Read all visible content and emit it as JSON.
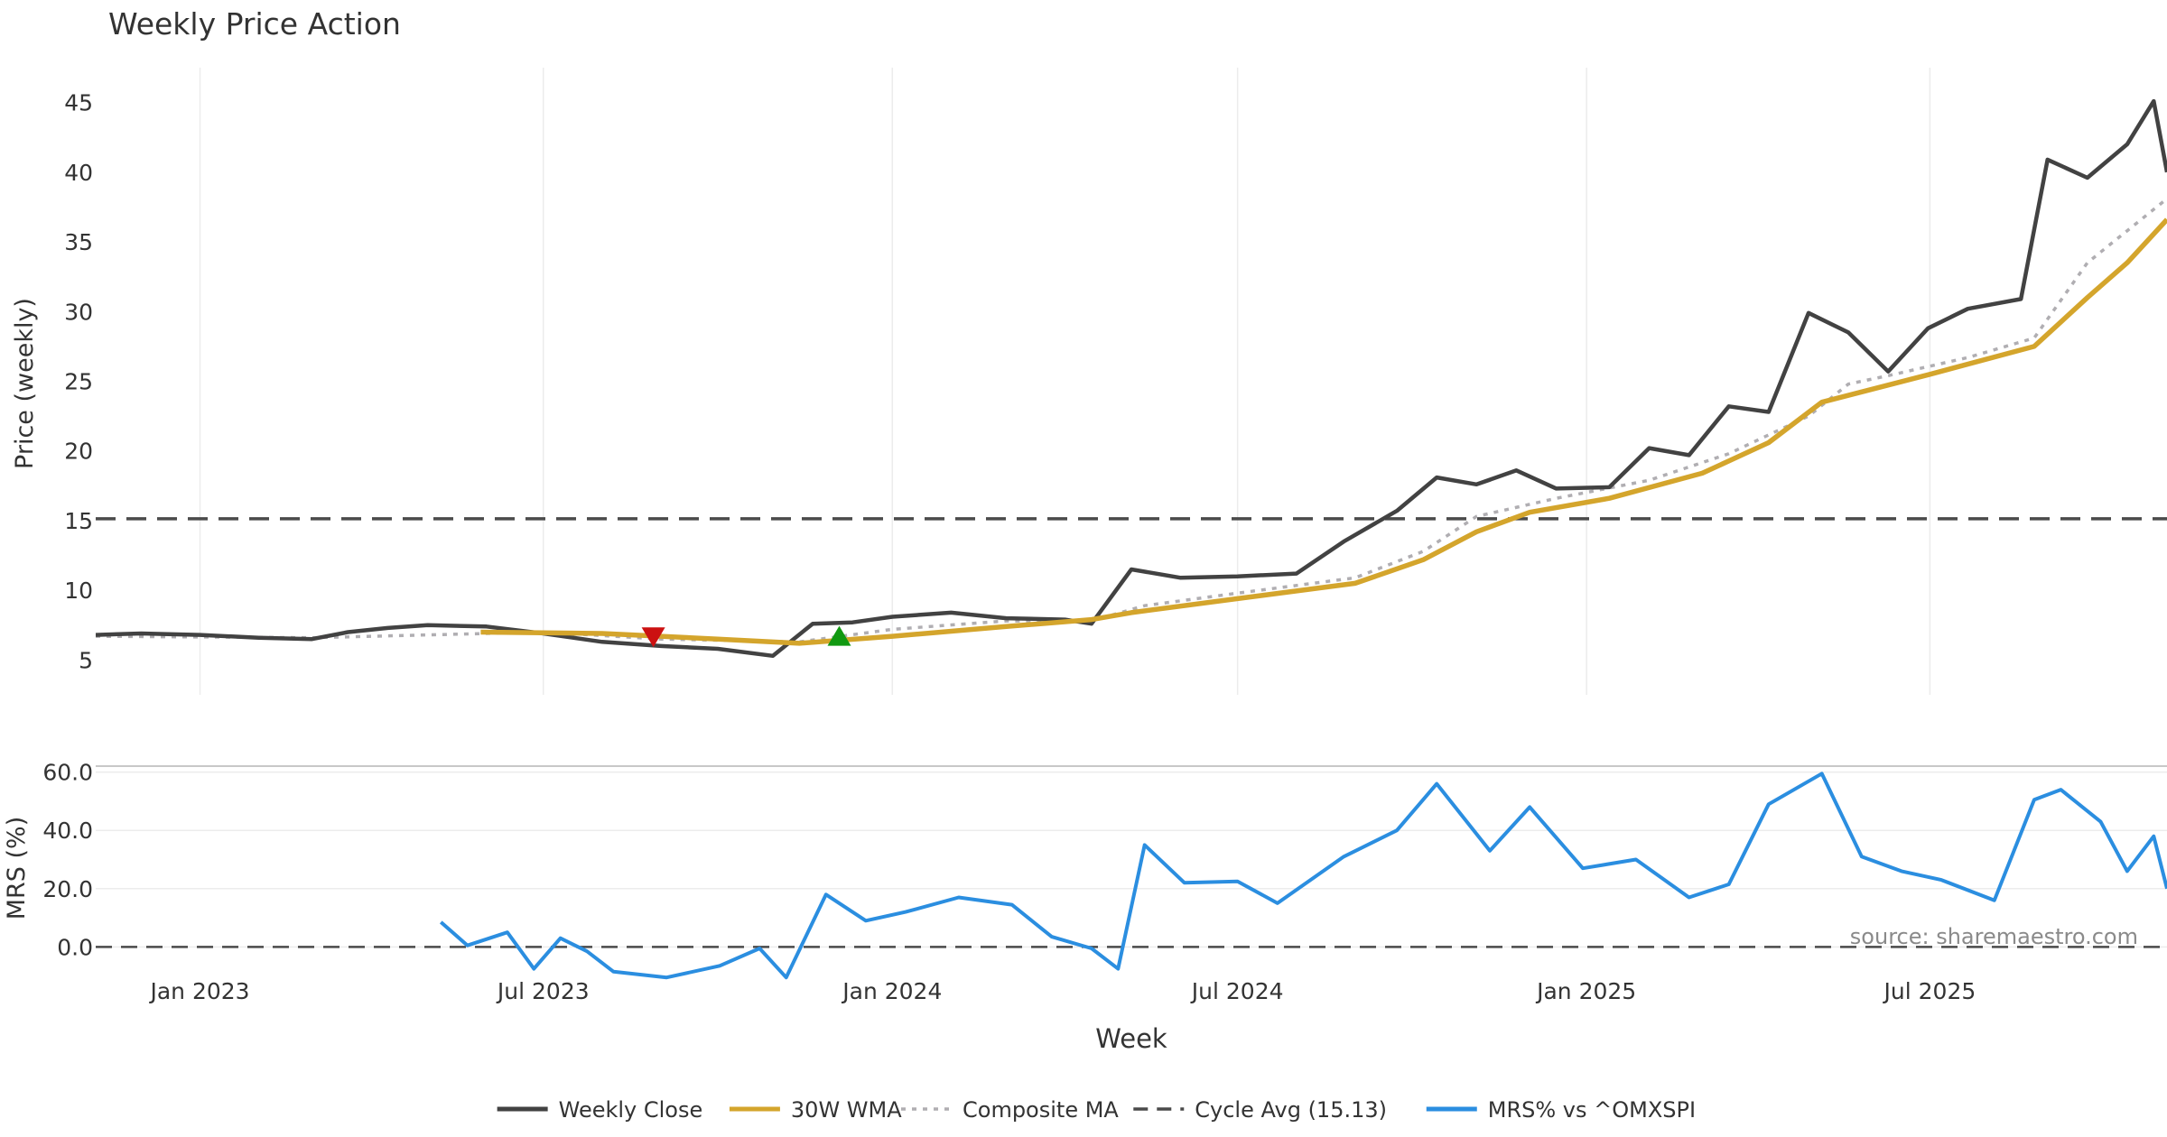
{
  "chart_data": [
    {
      "type": "line",
      "title": "Weekly Price Action",
      "ylabel": "Price (weekly)",
      "ylim": [
        2.5,
        47.5
      ],
      "yticks": [
        5,
        10,
        15,
        20,
        25,
        30,
        35,
        40,
        45
      ],
      "xlim": [
        "2022-11-07",
        "2025-11-03"
      ],
      "grid": "vertical",
      "reference_line": {
        "value": 15.13,
        "style": "dashed",
        "color": "#4a4a4a"
      },
      "series": [
        {
          "name": "Weekly Close",
          "color": "#424242",
          "points": [
            [
              "2022-11-07",
              6.8
            ],
            [
              "2022-12-01",
              6.9
            ],
            [
              "2023-01-01",
              6.8
            ],
            [
              "2023-02-01",
              6.6
            ],
            [
              "2023-03-01",
              6.5
            ],
            [
              "2023-03-20",
              7.0
            ],
            [
              "2023-04-10",
              7.3
            ],
            [
              "2023-05-01",
              7.5
            ],
            [
              "2023-06-01",
              7.4
            ],
            [
              "2023-07-01",
              6.9
            ],
            [
              "2023-08-01",
              6.3
            ],
            [
              "2023-09-01",
              6.0
            ],
            [
              "2023-10-01",
              5.8
            ],
            [
              "2023-10-30",
              5.3
            ],
            [
              "2023-11-20",
              7.6
            ],
            [
              "2023-12-11",
              7.7
            ],
            [
              "2024-01-01",
              8.1
            ],
            [
              "2024-02-01",
              8.4
            ],
            [
              "2024-03-01",
              8.0
            ],
            [
              "2024-04-01",
              7.9
            ],
            [
              "2024-04-15",
              7.6
            ],
            [
              "2024-05-06",
              11.5
            ],
            [
              "2024-06-01",
              10.9
            ],
            [
              "2024-07-01",
              11.0
            ],
            [
              "2024-08-01",
              11.2
            ],
            [
              "2024-08-26",
              13.5
            ],
            [
              "2024-09-23",
              15.7
            ],
            [
              "2024-10-14",
              18.1
            ],
            [
              "2024-11-04",
              17.6
            ],
            [
              "2024-11-25",
              18.6
            ],
            [
              "2024-12-16",
              17.3
            ],
            [
              "2025-01-13",
              17.4
            ],
            [
              "2025-02-03",
              20.2
            ],
            [
              "2025-02-24",
              19.7
            ],
            [
              "2025-03-17",
              23.2
            ],
            [
              "2025-04-07",
              22.8
            ],
            [
              "2025-04-28",
              29.9
            ],
            [
              "2025-05-19",
              28.5
            ],
            [
              "2025-06-09",
              25.7
            ],
            [
              "2025-06-30",
              28.8
            ],
            [
              "2025-07-21",
              30.2
            ],
            [
              "2025-08-18",
              30.9
            ],
            [
              "2025-09-01",
              40.9
            ],
            [
              "2025-09-22",
              39.6
            ],
            [
              "2025-10-13",
              42.0
            ],
            [
              "2025-10-27",
              45.1
            ],
            [
              "2025-11-03",
              40.0
            ]
          ]
        },
        {
          "name": "30W WMA",
          "color": "#d4a52c",
          "points": [
            [
              "2023-05-29",
              7.0
            ],
            [
              "2023-08-01",
              6.9
            ],
            [
              "2023-10-01",
              6.5
            ],
            [
              "2023-11-13",
              6.2
            ],
            [
              "2024-01-01",
              6.7
            ],
            [
              "2024-03-01",
              7.4
            ],
            [
              "2024-04-15",
              7.9
            ],
            [
              "2024-05-06",
              8.4
            ],
            [
              "2024-07-01",
              9.4
            ],
            [
              "2024-09-01",
              10.5
            ],
            [
              "2024-10-07",
              12.2
            ],
            [
              "2024-11-04",
              14.2
            ],
            [
              "2024-12-02",
              15.6
            ],
            [
              "2025-01-13",
              16.6
            ],
            [
              "2025-03-03",
              18.4
            ],
            [
              "2025-04-07",
              20.6
            ],
            [
              "2025-05-05",
              23.5
            ],
            [
              "2025-07-01",
              25.5
            ],
            [
              "2025-08-25",
              27.5
            ],
            [
              "2025-09-22",
              31.0
            ],
            [
              "2025-10-13",
              33.5
            ],
            [
              "2025-11-03",
              36.6
            ]
          ]
        },
        {
          "name": "Composite MA",
          "color": "#b0aeb2",
          "points": [
            [
              "2022-11-07",
              6.7
            ],
            [
              "2023-03-01",
              6.6
            ],
            [
              "2023-07-01",
              7.0
            ],
            [
              "2023-09-01",
              6.5
            ],
            [
              "2023-11-13",
              6.3
            ],
            [
              "2024-01-01",
              7.2
            ],
            [
              "2024-03-01",
              7.8
            ],
            [
              "2024-04-15",
              7.8
            ],
            [
              "2024-05-13",
              8.9
            ],
            [
              "2024-07-01",
              9.8
            ],
            [
              "2024-09-01",
              10.9
            ],
            [
              "2024-10-07",
              12.8
            ],
            [
              "2024-11-04",
              15.3
            ],
            [
              "2024-12-16",
              16.6
            ],
            [
              "2025-02-03",
              17.9
            ],
            [
              "2025-03-17",
              19.8
            ],
            [
              "2025-04-28",
              22.5
            ],
            [
              "2025-05-19",
              24.8
            ],
            [
              "2025-06-09",
              25.4
            ],
            [
              "2025-07-21",
              26.7
            ],
            [
              "2025-08-25",
              28.1
            ],
            [
              "2025-09-22",
              33.5
            ],
            [
              "2025-10-13",
              35.8
            ],
            [
              "2025-11-03",
              38.1
            ]
          ]
        }
      ],
      "markers": [
        {
          "type": "sell",
          "shape": "down-triangle",
          "color": "#cc1111",
          "x": "2023-08-28",
          "y": 6.5
        },
        {
          "type": "buy",
          "shape": "up-triangle",
          "color": "#119911",
          "x": "2023-12-04",
          "y": 6.8
        }
      ]
    },
    {
      "type": "line",
      "ylabel": "MRS (%)",
      "ylim": [
        -16,
        63
      ],
      "yticks": [
        0.0,
        20.0,
        40.0,
        60.0
      ],
      "ytick_labels": [
        "0.0",
        "20.0",
        "40.0",
        "60.0"
      ],
      "xlabel": "Week",
      "xticks": [
        "2023-01-01",
        "2023-07-01",
        "2024-01-01",
        "2024-07-01",
        "2025-01-01",
        "2025-07-01"
      ],
      "xtick_labels": [
        "Jan 2023",
        "Jul 2023",
        "Jan 2024",
        "Jul 2024",
        "Jan 2025",
        "Jul 2025"
      ],
      "reference_line": {
        "value": 0.0,
        "style": "dashed",
        "color": "#4a4a4a"
      },
      "series": [
        {
          "name": "MRS% vs ^OMXSPI",
          "color": "#2b8ee0",
          "points": [
            [
              "2023-05-08",
              8.5
            ],
            [
              "2023-05-22",
              0.5
            ],
            [
              "2023-06-12",
              5.0
            ],
            [
              "2023-06-26",
              -7.5
            ],
            [
              "2023-07-10",
              3.0
            ],
            [
              "2023-07-24",
              -1.5
            ],
            [
              "2023-08-07",
              -8.5
            ],
            [
              "2023-09-04",
              -10.5
            ],
            [
              "2023-10-02",
              -6.5
            ],
            [
              "2023-10-23",
              -0.5
            ],
            [
              "2023-11-06",
              -10.5
            ],
            [
              "2023-11-27",
              18.0
            ],
            [
              "2023-12-18",
              9.0
            ],
            [
              "2024-01-08",
              12.0
            ],
            [
              "2024-02-05",
              17.0
            ],
            [
              "2024-03-04",
              14.5
            ],
            [
              "2024-03-25",
              3.5
            ],
            [
              "2024-04-15",
              -0.5
            ],
            [
              "2024-04-29",
              -7.5
            ],
            [
              "2024-05-13",
              35.0
            ],
            [
              "2024-06-03",
              22.0
            ],
            [
              "2024-07-01",
              22.5
            ],
            [
              "2024-07-22",
              15.0
            ],
            [
              "2024-08-26",
              31.0
            ],
            [
              "2024-09-23",
              40.0
            ],
            [
              "2024-10-14",
              56.0
            ],
            [
              "2024-11-11",
              33.0
            ],
            [
              "2024-12-02",
              48.0
            ],
            [
              "2024-12-30",
              27.0
            ],
            [
              "2025-01-27",
              30.0
            ],
            [
              "2025-02-24",
              17.0
            ],
            [
              "2025-03-17",
              21.5
            ],
            [
              "2025-04-07",
              49.0
            ],
            [
              "2025-05-05",
              59.5
            ],
            [
              "2025-05-26",
              31.0
            ],
            [
              "2025-06-16",
              26.0
            ],
            [
              "2025-07-07",
              23.0
            ],
            [
              "2025-08-04",
              16.0
            ],
            [
              "2025-08-25",
              50.5
            ],
            [
              "2025-09-08",
              54.0
            ],
            [
              "2025-09-29",
              43.0
            ],
            [
              "2025-10-13",
              26.0
            ],
            [
              "2025-10-27",
              38.0
            ],
            [
              "2025-11-03",
              20.0
            ]
          ]
        }
      ],
      "annotation": "source: sharemaestro.com"
    }
  ],
  "legend": {
    "placement": "bottom-center",
    "items": [
      {
        "label": "Weekly Close",
        "color": "#424242",
        "style": "solid"
      },
      {
        "label": "30W WMA",
        "color": "#d4a52c",
        "style": "solid"
      },
      {
        "label": "Composite MA",
        "color": "#b0aeb2",
        "style": "dotted"
      },
      {
        "label": "Cycle Avg (15.13)",
        "color": "#4a4a4a",
        "style": "dashed"
      },
      {
        "label": "MRS% vs ^OMXSPI",
        "color": "#2b8ee0",
        "style": "solid"
      }
    ]
  }
}
